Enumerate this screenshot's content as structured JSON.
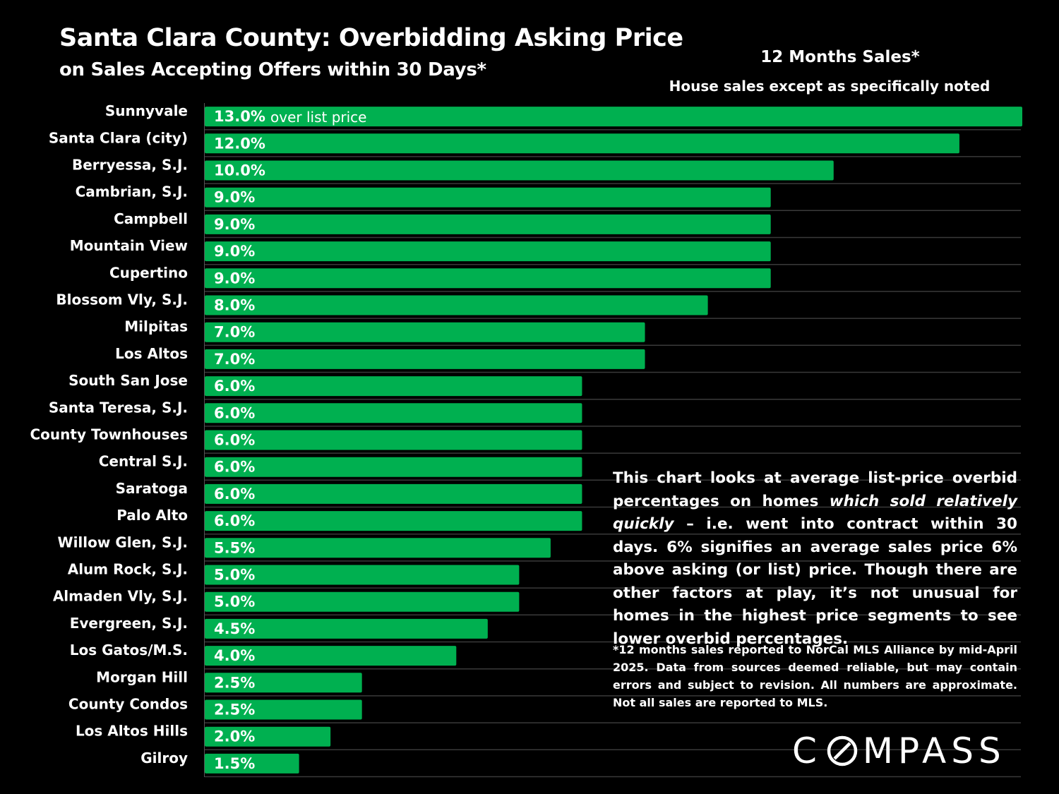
{
  "header": {
    "title": "Santa Clara County: Overbidding Asking Price",
    "subtitle": "on Sales Accepting Offers within 30 Days*",
    "period": "12 Months Sales*",
    "note": "House sales except as specifically noted"
  },
  "description": {
    "part1": "This chart looks at average list-price overbid percentages on homes ",
    "emphasis": "which sold relatively quickly",
    "part2": " – i.e. went into contract within 30 days. 6% signifies an average sales price 6% above asking (or list) price.  Though there are other factors at play, it’s not unusual for homes in the highest price segments to see lower overbid percentages."
  },
  "footnote": "*12 months sales reported to NorCal MLS Alliance by mid-April 2025. Data from sources deemed reliable, but may contain errors and subject to revision. All numbers are approximate. Not all sales are reported to MLS.",
  "logo": {
    "text_before": "C",
    "text_after": "MPASS"
  },
  "colors": {
    "background": "#000000",
    "bar": "#00b050",
    "text": "#ffffff",
    "gridline": "#3a3a3a"
  },
  "chart_data": {
    "type": "bar",
    "orientation": "horizontal",
    "categories": [
      "Sunnyvale",
      "Santa Clara (city)",
      "Berryessa, S.J.",
      "Cambrian, S.J.",
      "Campbell",
      "Mountain View",
      "Cupertino",
      "Blossom Vly, S.J.",
      "Milpitas",
      "Los Altos",
      "South San Jose",
      "Santa Teresa, S.J.",
      "County Townhouses",
      "Central S.J.",
      "Saratoga",
      "Palo Alto",
      "Willow Glen, S.J.",
      "Alum Rock, S.J.",
      "Almaden Vly, S.J.",
      "Evergreen, S.J.",
      "Los Gatos/M.S.",
      "Morgan Hill",
      "County Condos",
      "Los Altos Hills",
      "Gilroy"
    ],
    "values": [
      13.0,
      12.0,
      10.0,
      9.0,
      9.0,
      9.0,
      9.0,
      8.0,
      7.0,
      7.0,
      6.0,
      6.0,
      6.0,
      6.0,
      6.0,
      6.0,
      5.5,
      5.0,
      5.0,
      4.5,
      4.0,
      2.5,
      2.5,
      2.0,
      1.5
    ],
    "value_labels": [
      "13.0%",
      "12.0%",
      "10.0%",
      "9.0%",
      "9.0%",
      "9.0%",
      "9.0%",
      "8.0%",
      "7.0%",
      "7.0%",
      "6.0%",
      "6.0%",
      "6.0%",
      "6.0%",
      "6.0%",
      "6.0%",
      "5.5%",
      "5.0%",
      "5.0%",
      "4.5%",
      "4.0%",
      "2.5%",
      "2.5%",
      "2.0%",
      "1.5%"
    ],
    "first_bar_annotation": "over list price",
    "xlim": [
      0,
      13.0
    ],
    "grid": true,
    "legend": "none"
  }
}
